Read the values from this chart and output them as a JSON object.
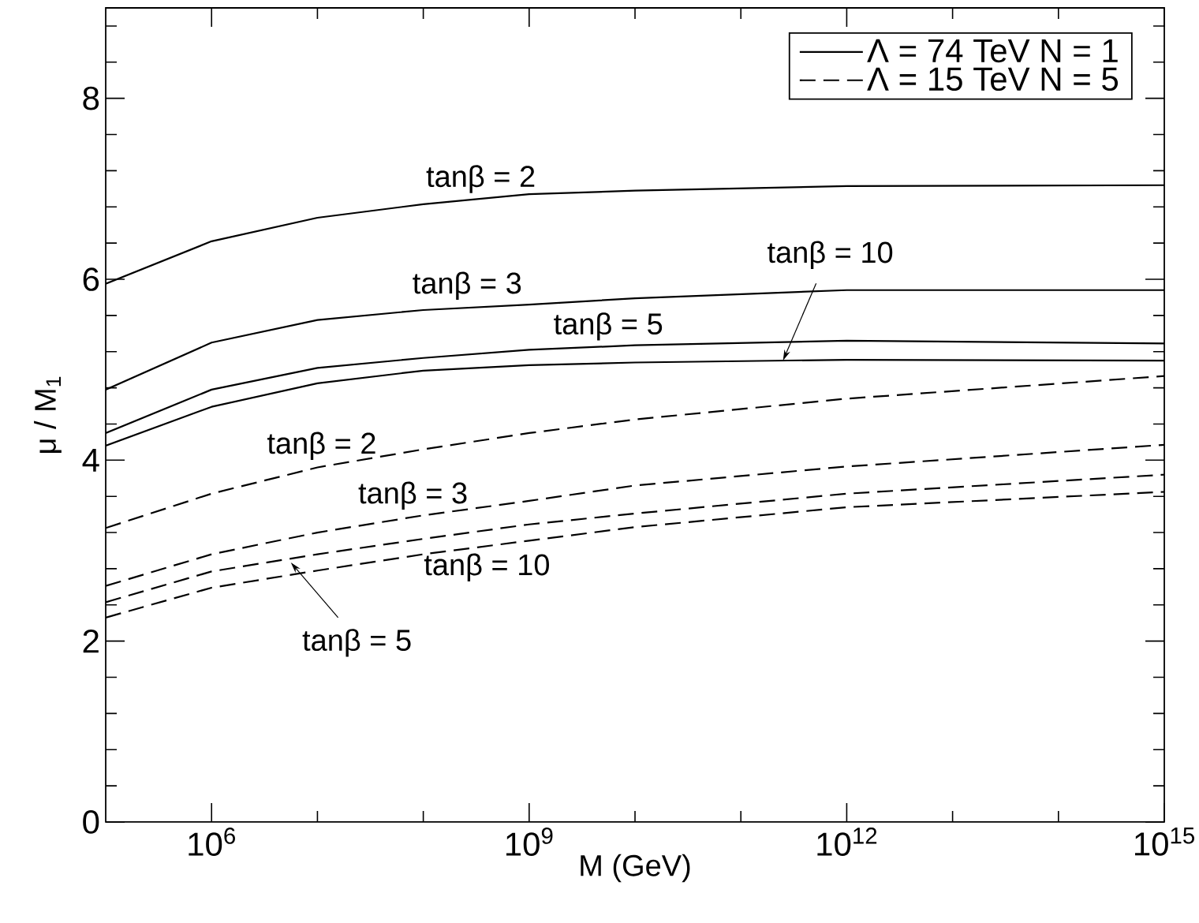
{
  "chart_data": {
    "type": "line",
    "xlabel": "M (GeV)",
    "ylabel": "μ / M$_{1}$",
    "log": "x",
    "legend": "top right",
    "marker": "none",
    "x": [
      100000.0,
      1000000.0,
      10000000.0,
      100000000.0,
      1000000000.0,
      10000000000.0,
      1000000000000.0,
      1000000000000000.0
    ],
    "xlim": [
      100000.0,
      1000000000000000.0
    ],
    "ylim": [
      0,
      9
    ],
    "xticks": [
      {
        "value": 1000000.0,
        "label": "10$^{6}$"
      },
      {
        "value": 10000000.0,
        "label": null
      },
      {
        "value": 100000000.0,
        "label": null
      },
      {
        "value": 1000000000.0,
        "label": "10$^{9}$"
      },
      {
        "value": 10000000000.0,
        "label": null
      },
      {
        "value": 100000000000.0,
        "label": null
      },
      {
        "value": 1000000000000.0,
        "label": "10$^{12}$"
      },
      {
        "value": 10000000000000.0,
        "label": null
      },
      {
        "value": 100000000000000.0,
        "label": null
      },
      {
        "value": 1000000000000000.0,
        "label": "10$^{15}$"
      }
    ],
    "yticks": [
      0,
      {
        "value": 0.4,
        "label": null
      },
      {
        "value": 0.8,
        "label": null
      },
      {
        "value": 1.2,
        "label": null
      },
      {
        "value": 1.6,
        "label": null
      },
      2,
      {
        "value": 2.4,
        "label": null
      },
      {
        "value": 2.8,
        "label": null
      },
      {
        "value": 3.2,
        "label": null
      },
      {
        "value": 3.6,
        "label": null
      },
      4,
      {
        "value": 4.4,
        "label": null
      },
      {
        "value": 4.8,
        "label": null
      },
      {
        "value": 5.2,
        "label": null
      },
      {
        "value": 5.6,
        "label": null
      },
      6,
      {
        "value": 6.4,
        "label": null
      },
      {
        "value": 6.8,
        "label": null
      },
      {
        "value": 7.2,
        "label": null
      },
      {
        "value": 7.6,
        "label": null
      },
      8,
      {
        "value": 8.4,
        "label": null
      },
      {
        "value": 8.8,
        "label": null
      }
    ],
    "series": [
      {
        "name": "Λ = 74 TeV   N = 1",
        "color": "#000000",
        "line_style": "solid",
        "values": [
          5.95,
          6.42,
          6.68,
          6.83,
          6.94,
          6.98,
          7.03,
          7.04
        ]
      },
      {
        "color": "#000000",
        "line_style": "solid",
        "values": [
          4.78,
          5.3,
          5.55,
          5.66,
          5.72,
          5.79,
          5.88,
          5.88
        ]
      },
      {
        "color": "#000000",
        "line_style": "solid",
        "values": [
          4.3,
          4.78,
          5.02,
          5.13,
          5.22,
          5.27,
          5.32,
          5.29
        ]
      },
      {
        "color": "#000000",
        "line_style": "solid",
        "values": [
          4.16,
          4.59,
          4.85,
          4.99,
          5.05,
          5.08,
          5.11,
          5.1
        ]
      },
      {
        "name": "Λ = 15 TeV   N = 5",
        "color": "#000000",
        "line_style": "dashed",
        "values": [
          3.25,
          3.63,
          3.92,
          4.12,
          4.3,
          4.45,
          4.68,
          4.93
        ]
      },
      {
        "color": "#000000",
        "line_style": "dashed",
        "values": [
          2.61,
          2.96,
          3.2,
          3.39,
          3.55,
          3.72,
          3.93,
          4.17
        ]
      },
      {
        "color": "#000000",
        "line_style": "dashed",
        "values": [
          2.43,
          2.77,
          2.96,
          3.13,
          3.29,
          3.41,
          3.63,
          3.84
        ]
      },
      {
        "color": "#000000",
        "line_style": "dashed",
        "values": [
          2.26,
          2.59,
          2.78,
          2.96,
          3.11,
          3.26,
          3.48,
          3.65
        ]
      }
    ],
    "annotations": [
      {
        "text": "tanβ = 2",
        "x": 350000000.0,
        "y": 6.88
      },
      {
        "text": "tanβ = 3",
        "x": 260000000.0,
        "y": 5.7
      },
      {
        "text": "tanβ = 5",
        "x": 5600000000.0,
        "y": 5.25
      },
      {
        "text": "tanβ = 10",
        "x": 250000000000.0,
        "y": 5.1
      },
      {
        "text": "tanβ = 2",
        "x": 11000000.0,
        "y": 3.93
      },
      {
        "text": "tanβ = 3",
        "x": 80000000.0,
        "y": 3.38
      },
      {
        "text": "tanβ = 10",
        "x": 400000000.0,
        "y": 3.06
      },
      {
        "text": "tanβ = 5",
        "x": 5600000.0,
        "y": 2.87
      }
    ]
  }
}
